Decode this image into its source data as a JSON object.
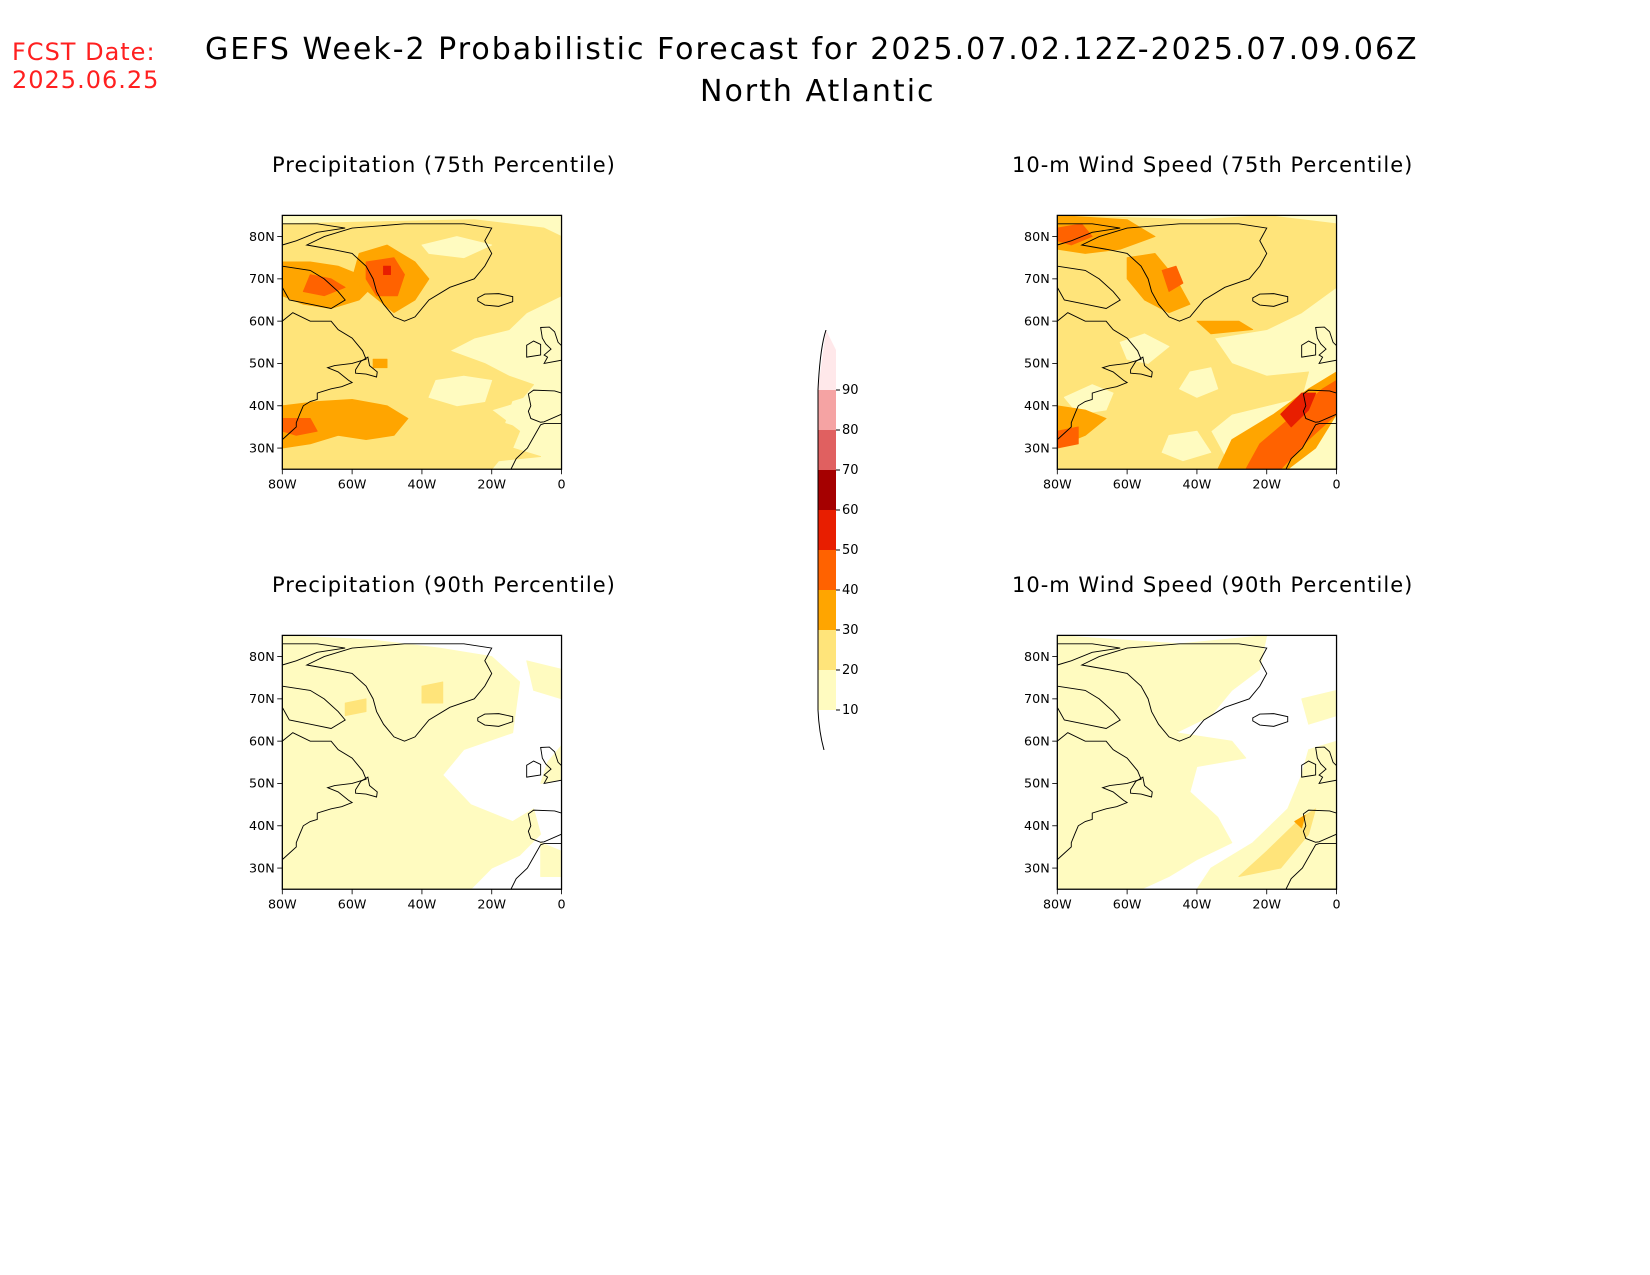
{
  "fcst": {
    "line1": "FCST Date:",
    "line2": "2025.06.25"
  },
  "title": {
    "line1": "GEFS Week-2 Probabilistic Forecast for 2025.07.02.12Z-2025.07.09.06Z",
    "line2": "North Atlantic"
  },
  "panels": [
    {
      "id": "p1",
      "title": "Precipitation (75th Percentile)"
    },
    {
      "id": "p2",
      "title": "10-m Wind Speed (75th Percentile)"
    },
    {
      "id": "p3",
      "title": "Precipitation (90th Percentile)"
    },
    {
      "id": "p4",
      "title": "10-m Wind Speed (90th Percentile)"
    }
  ],
  "axes": {
    "lat_ticks": [
      "80N",
      "70N",
      "60N",
      "50N",
      "40N",
      "30N"
    ],
    "lon_ticks": [
      "80W",
      "60W",
      "40W",
      "20W",
      "0"
    ]
  },
  "colorbar": {
    "labels": [
      "10",
      "20",
      "30",
      "40",
      "50",
      "60",
      "70",
      "80",
      "90"
    ],
    "colors": [
      "#fffbc0",
      "#ffe47a",
      "#ffa500",
      "#ff6200",
      "#e81e00",
      "#a50000",
      "#e06060",
      "#f5a3a3",
      "#ffe8ea"
    ]
  }
}
